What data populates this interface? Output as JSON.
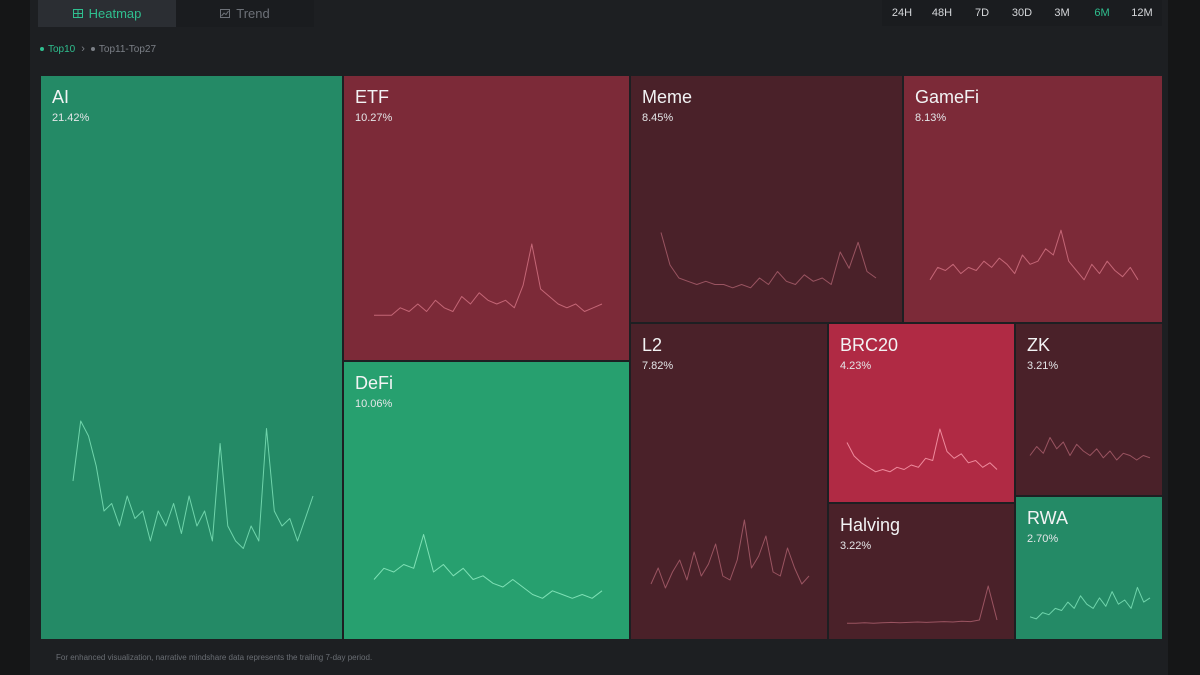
{
  "view_tabs": [
    {
      "label": "Heatmap",
      "active": true,
      "icon": "heatmap-icon"
    },
    {
      "label": "Trend",
      "active": false,
      "icon": "trend-icon"
    }
  ],
  "time_ranges": [
    {
      "label": "24H",
      "active": false
    },
    {
      "label": "48H",
      "active": false
    },
    {
      "label": "7D",
      "active": false
    },
    {
      "label": "30D",
      "active": false
    },
    {
      "label": "3M",
      "active": false
    },
    {
      "label": "6M",
      "active": true
    },
    {
      "label": "12M",
      "active": false
    }
  ],
  "filters": [
    {
      "label": "Top10",
      "active": true
    },
    {
      "label": "Top11-Top27",
      "active": false
    }
  ],
  "colors": {
    "accent": "#2fbf8f",
    "green": "#248a66",
    "green_bright": "#27a06f",
    "red": "#7c2a38",
    "red_dark": "#4a2129",
    "red_bright": "#b02a44"
  },
  "treemap": {
    "AI": {
      "label": "AI",
      "share": "21.42%"
    },
    "ETF": {
      "label": "ETF",
      "share": "10.27%"
    },
    "DeFi": {
      "label": "DeFi",
      "share": "10.06%"
    },
    "Meme": {
      "label": "Meme",
      "share": "8.45%"
    },
    "GameFi": {
      "label": "GameFi",
      "share": "8.13%"
    },
    "L2": {
      "label": "L2",
      "share": "7.82%"
    },
    "BRC20": {
      "label": "BRC20",
      "share": "4.23%"
    },
    "ZK": {
      "label": "ZK",
      "share": "3.21%"
    },
    "Halving": {
      "label": "Halving",
      "share": "3.22%"
    },
    "RWA": {
      "label": "RWA",
      "share": "2.70%"
    }
  },
  "footnote": "For enhanced visualization, narrative mindshare data represents the trailing 7-day period."
}
